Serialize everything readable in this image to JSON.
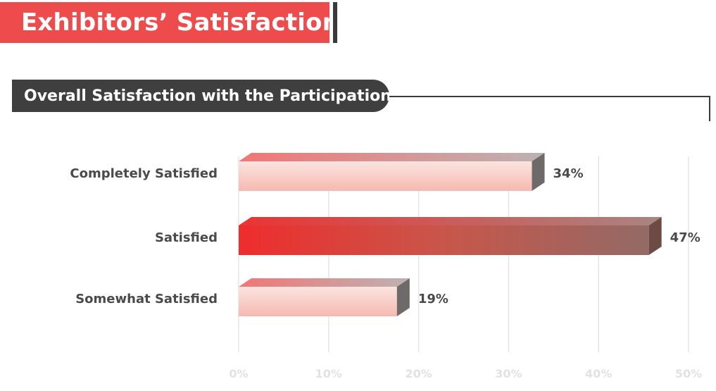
{
  "header": {
    "title": "Exhibitors’ Satisfaction",
    "subtitle": "Overall Satisfaction with the Participation"
  },
  "colors": {
    "title_red": "#ee4c4c",
    "dark": "#3f3f3f",
    "bar_light_start": "#f07a7a",
    "bar_light_end": "#c9b8b8",
    "bar_strong_start": "#e83030",
    "bar_strong_end": "#9a6e6a"
  },
  "chart_data": {
    "type": "bar",
    "orientation": "horizontal",
    "categories": [
      "Completely Satisfied",
      "Satisfied",
      "Somewhat Satisfied"
    ],
    "values": [
      34,
      47,
      19
    ],
    "value_labels": [
      "34%",
      "47%",
      "19%"
    ],
    "x_ticks": [
      "0%",
      "10%",
      "20%",
      "30%",
      "40%",
      "50%"
    ],
    "xlim": [
      0,
      50
    ],
    "grid": true,
    "legend": "none"
  }
}
